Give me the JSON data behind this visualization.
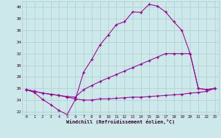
{
  "xlabel": "Windchill (Refroidissement éolien,°C)",
  "bg_color": "#cce8e8",
  "line_color": "#990099",
  "grid_color": "#aacccc",
  "ylim": [
    21.5,
    41
  ],
  "xlim": [
    -0.5,
    23.5
  ],
  "yticks": [
    22,
    24,
    26,
    28,
    30,
    32,
    34,
    36,
    38,
    40
  ],
  "xticks": [
    0,
    1,
    2,
    3,
    4,
    5,
    6,
    7,
    8,
    9,
    10,
    11,
    12,
    13,
    14,
    15,
    16,
    17,
    18,
    19,
    20,
    21,
    22,
    23
  ],
  "series": [
    [
      25.8,
      25.3,
      24.1,
      23.2,
      22.2,
      21.5,
      24.1,
      28.8,
      31.0,
      33.5,
      35.2,
      37.0,
      37.5,
      39.2,
      39.1,
      40.5,
      40.2,
      39.2,
      37.5,
      36.0,
      32.0,
      26.0,
      25.8,
      26.0
    ],
    [
      25.8,
      25.5,
      25.2,
      25.0,
      24.8,
      24.6,
      24.5,
      25.8,
      26.5,
      27.2,
      27.8,
      28.4,
      29.0,
      29.6,
      30.2,
      30.8,
      31.4,
      32.0,
      32.0,
      32.0,
      32.0,
      26.0,
      25.8,
      26.0
    ],
    [
      25.8,
      25.5,
      25.2,
      25.0,
      24.8,
      24.5,
      24.2,
      24.0,
      24.0,
      24.2,
      24.2,
      24.3,
      24.4,
      24.5,
      24.5,
      24.6,
      24.7,
      24.8,
      24.9,
      25.0,
      25.2,
      25.3,
      25.5,
      26.0
    ]
  ]
}
